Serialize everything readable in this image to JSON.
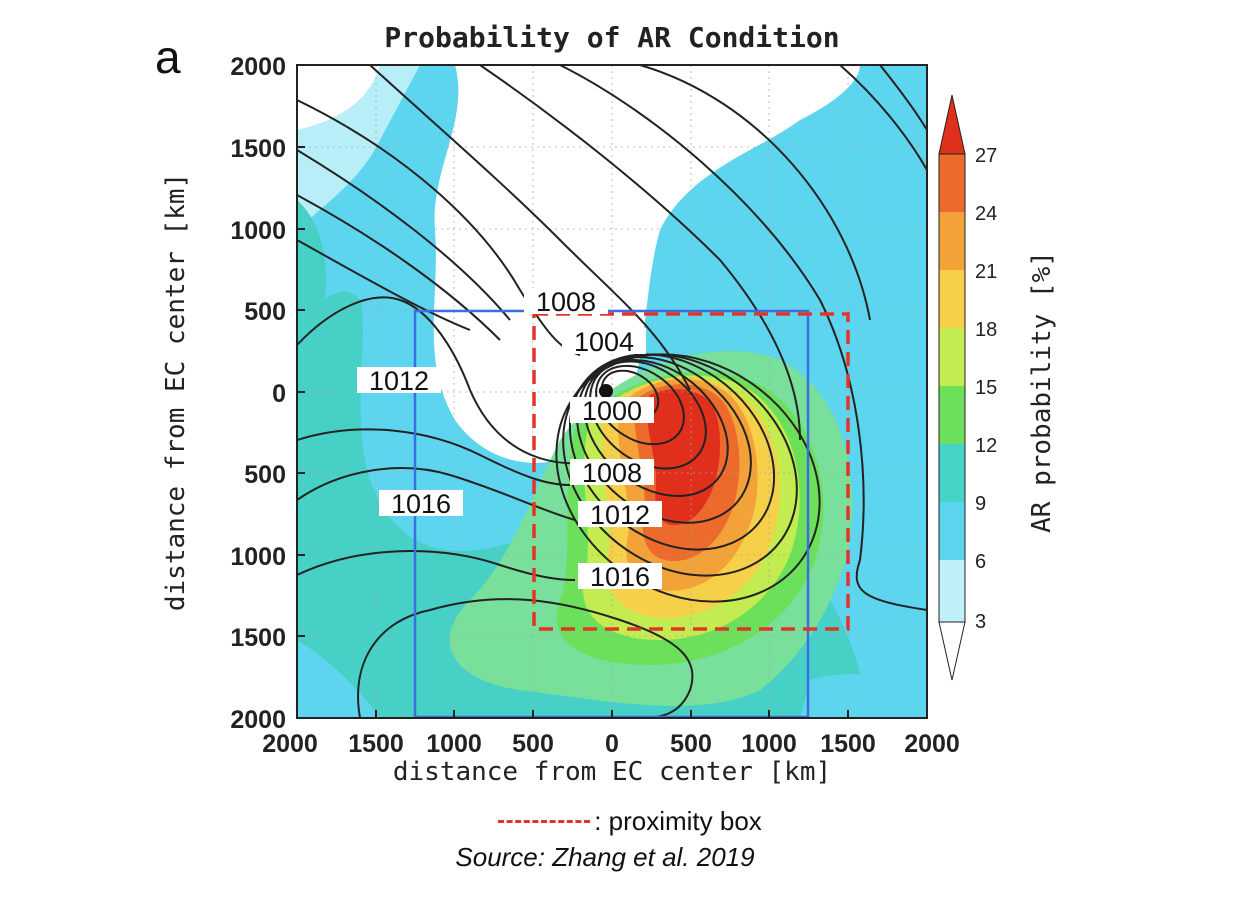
{
  "chart_data": {
    "type": "contour",
    "panel_label": "a",
    "title": "Probability of AR Condition",
    "xlabel": "distance from EC center [km]",
    "ylabel": "distance from EC center [km]",
    "xlim": [
      -2000,
      2000
    ],
    "ylim": [
      -2000,
      2000
    ],
    "x_ticks": [
      2000,
      1500,
      1000,
      500,
      0,
      500,
      1000,
      1500,
      2000
    ],
    "y_ticks": [
      2000,
      1500,
      1000,
      500,
      0,
      500,
      1000,
      1500,
      2000
    ],
    "grid": true,
    "colorbar": {
      "label": "AR probability [%]",
      "levels": [
        3,
        6,
        9,
        12,
        15,
        18,
        21,
        24,
        27
      ],
      "colors": [
        "#ffffff",
        "#bff0f8",
        "#5ed5ee",
        "#45d4c8",
        "#78e09a",
        "#6ce05a",
        "#c2ec50",
        "#f7d04a",
        "#f3a239",
        "#ec6a2c",
        "#e0301c"
      ]
    },
    "probability_max_location_km": [
      350,
      -350
    ],
    "probability_max_percent": 27,
    "pressure_contours_hpa": [
      1000,
      1004,
      1008,
      1012,
      1016
    ],
    "contour_labels": [
      "1008",
      "1004",
      "1000",
      "1008",
      "1012",
      "1016",
      "1012",
      "1016"
    ],
    "cyclone_center_km": [
      0,
      0
    ],
    "boxes": [
      {
        "name": "proximity box",
        "style": "dashed",
        "color": "#e0362a",
        "x_range": [
          -500,
          1500
        ],
        "y_range": [
          -1450,
          500
        ]
      },
      {
        "name": "outer box",
        "style": "solid",
        "color": "#3a6fe0",
        "x_range": [
          -1250,
          1250
        ],
        "y_range": [
          -2000,
          500
        ]
      }
    ]
  },
  "legend": {
    "proximity_label": ": proximity box"
  },
  "source_text": "Source: Zhang et al. 2019"
}
